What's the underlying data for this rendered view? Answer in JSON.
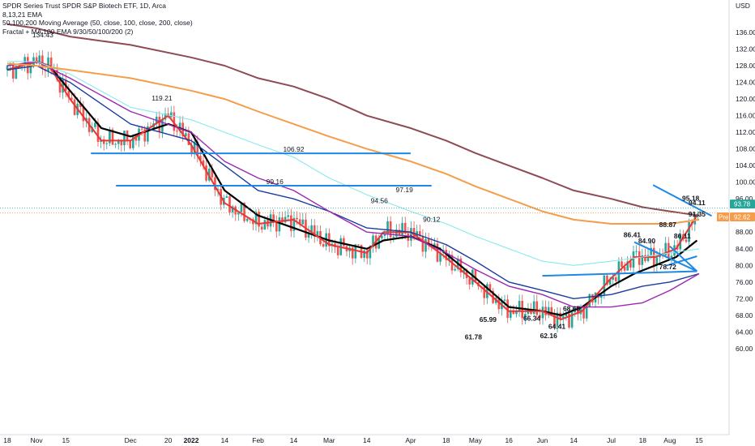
{
  "legend": {
    "title": "SPDR Series Trust SPDR S&P Biotech ETF, 1D, Arca",
    "line2": "8,13,21 EMA",
    "line3": "50,100,200 Moving Average (50, close, 100, close, 200, close)",
    "line4": "Fractal + MA 100 EMA 9/30/50/100/200 (2)"
  },
  "currency_label": "USD",
  "chart_data": {
    "type": "line",
    "title": "SPDR Series Trust SPDR S&P Biotech ETF, 1D, Arca",
    "xlabel": "",
    "ylabel": "USD",
    "ylim": [
      59,
      142
    ],
    "grid": false,
    "y_ticks": [
      "136.00",
      "132.00",
      "128.00",
      "124.00",
      "120.00",
      "116.00",
      "112.00",
      "108.00",
      "104.00",
      "100.00",
      "96.00",
      "92.00",
      "88.00",
      "84.00",
      "80.00",
      "76.00",
      "72.00",
      "68.00",
      "64.00",
      "60.00"
    ],
    "y_tick_values": [
      136,
      132,
      128,
      124,
      120,
      116,
      112,
      108,
      104,
      100,
      96,
      92,
      88,
      84,
      80,
      76,
      72,
      68,
      64,
      60
    ],
    "x_ticks": [
      "18",
      "Nov",
      "15",
      "Dec",
      "20",
      "2022",
      "14",
      "Feb",
      "14",
      "Mar",
      "14",
      "Apr",
      "18",
      "May",
      "16",
      "Jun",
      "14",
      "Jul",
      "18",
      "Aug",
      "15"
    ],
    "x_tick_days": [
      0,
      14,
      28,
      59,
      77,
      88,
      104,
      120,
      137,
      154,
      172,
      193,
      210,
      224,
      240,
      256,
      271,
      289,
      304,
      317,
      331
    ],
    "series": [
      {
        "color": "#000000",
        "x": [
          0,
          14,
          20,
          30,
          45,
          59,
          77,
          88,
          104,
          120,
          137,
          154,
          172,
          180,
          193,
          207,
          224,
          240,
          256,
          265,
          275,
          289,
          300,
          310,
          320,
          330
        ],
        "y": [
          127,
          129,
          128,
          122,
          113,
          111,
          114,
          112,
          98,
          92,
          89,
          86,
          84,
          86,
          87,
          84,
          77,
          70,
          69,
          68,
          70,
          75,
          78,
          80,
          82,
          86
        ]
      },
      {
        "color": "#e53935",
        "x": [
          0,
          14,
          20,
          30,
          45,
          59,
          77,
          88,
          104,
          120,
          137,
          154,
          172,
          180,
          193,
          207,
          224,
          240,
          256,
          265,
          275,
          289,
          300,
          310,
          320,
          330
        ],
        "y": [
          127,
          129,
          128,
          120,
          110,
          110,
          116,
          109,
          95,
          90,
          91,
          85,
          83,
          88,
          88,
          83,
          76,
          69,
          69,
          67,
          69,
          77,
          82,
          82,
          84,
          92
        ]
      },
      {
        "color": "#1a3d9e",
        "x": [
          0,
          14,
          30,
          59,
          88,
          104,
          120,
          137,
          154,
          172,
          193,
          210,
          224,
          240,
          256,
          271,
          289,
          304,
          317,
          331
        ],
        "y": [
          127,
          128,
          124,
          114,
          110,
          104,
          98,
          96,
          93,
          89,
          88,
          85,
          81,
          76,
          74,
          72,
          73,
          75,
          76,
          78
        ]
      },
      {
        "color": "#9c27b0",
        "x": [
          0,
          14,
          30,
          59,
          88,
          104,
          120,
          137,
          154,
          172,
          193,
          210,
          224,
          240,
          256,
          271,
          289,
          304,
          317,
          331
        ],
        "y": [
          128,
          129,
          125,
          117,
          112,
          105,
          101,
          98,
          93,
          88,
          87,
          83,
          79,
          75,
          73,
          70,
          70,
          71,
          74,
          78
        ]
      },
      {
        "color": "#87e9ee",
        "x": [
          0,
          14,
          30,
          59,
          88,
          104,
          120,
          137,
          154,
          172,
          193,
          210,
          224,
          240,
          256,
          271,
          289,
          304,
          317,
          331
        ],
        "y": [
          129,
          129,
          126,
          118,
          115,
          112,
          109,
          106,
          101,
          97,
          93,
          90,
          87,
          84,
          81,
          80,
          81,
          82,
          83,
          84
        ]
      },
      {
        "color": "#f59d4a",
        "x": [
          0,
          14,
          30,
          59,
          88,
          104,
          120,
          137,
          154,
          172,
          193,
          210,
          224,
          240,
          256,
          271,
          289,
          304,
          317,
          331
        ],
        "y": [
          128.5,
          128,
          127,
          125,
          122,
          120,
          117,
          114,
          111,
          108,
          105,
          102,
          99,
          96,
          93,
          91,
          90,
          90,
          90,
          91
        ]
      },
      {
        "color": "#8e4a55",
        "x": [
          0,
          14,
          30,
          59,
          88,
          104,
          120,
          137,
          154,
          172,
          193,
          210,
          224,
          240,
          256,
          271,
          289,
          304,
          317,
          331
        ],
        "y": [
          138,
          137,
          135,
          133,
          130,
          128,
          125,
          123,
          120,
          116,
          113,
          110,
          107,
          104,
          101,
          98,
          96,
          94,
          93,
          92
        ]
      }
    ],
    "annotations": [
      {
        "text": "134.43",
        "x": 17,
        "y": 134.43,
        "bold": false
      },
      {
        "text": "119.21",
        "x": 74,
        "y": 119.21,
        "bold": false
      },
      {
        "text": "106.92",
        "x": 137,
        "y": 106.92,
        "bold": false
      },
      {
        "text": "99.16",
        "x": 128,
        "y": 99.16,
        "bold": false
      },
      {
        "text": "94.56",
        "x": 178,
        "y": 94.56,
        "bold": false
      },
      {
        "text": "97.19",
        "x": 190,
        "y": 97.19,
        "bold": false
      },
      {
        "text": "90.12",
        "x": 203,
        "y": 90.12,
        "bold": false
      },
      {
        "text": "65.99",
        "x": 230,
        "y": 65.99,
        "bold": true
      },
      {
        "text": "61.78",
        "x": 223,
        "y": 61.78,
        "bold": true
      },
      {
        "text": "66.34",
        "x": 251,
        "y": 66.34,
        "bold": true
      },
      {
        "text": "68.65",
        "x": 270,
        "y": 68.65,
        "bold": true
      },
      {
        "text": "64.41",
        "x": 263,
        "y": 64.41,
        "bold": true
      },
      {
        "text": "62.16",
        "x": 259,
        "y": 62.16,
        "bold": true
      },
      {
        "text": "86.41",
        "x": 299,
        "y": 86.41,
        "bold": true
      },
      {
        "text": "84.90",
        "x": 306,
        "y": 84.9,
        "bold": true
      },
      {
        "text": "78.72",
        "x": 316,
        "y": 78.72,
        "bold": true
      },
      {
        "text": "88.87",
        "x": 316,
        "y": 88.87,
        "bold": true
      },
      {
        "text": "86.11",
        "x": 323,
        "y": 86.11,
        "bold": true
      },
      {
        "text": "95.18",
        "x": 327,
        "y": 95.18,
        "bold": true
      },
      {
        "text": "94.11",
        "x": 330,
        "y": 94.11,
        "bold": true
      },
      {
        "text": "91.35",
        "x": 330,
        "y": 91.35,
        "bold": true
      }
    ],
    "hlines": [
      {
        "x1": 40,
        "x2": 193,
        "y": 106.92,
        "color": "#1e88e5"
      },
      {
        "x1": 52,
        "x2": 203,
        "y": 99.16,
        "color": "#1e88e5"
      }
    ],
    "trendlines": [
      {
        "x1": 256,
        "y1": 77.5,
        "x2": 330,
        "y2": 78.6,
        "color": "#1e88e5"
      },
      {
        "x1": 300,
        "y1": 85.6,
        "x2": 330,
        "y2": 78.6,
        "color": "#1e88e5"
      },
      {
        "x1": 309,
        "y1": 99.3,
        "x2": 337,
        "y2": 91.9,
        "color": "#1e88e5"
      },
      {
        "x1": 317,
        "y1": 84.6,
        "x2": 330,
        "y2": 78.6,
        "color": "#1e88e5"
      },
      {
        "x1": 315,
        "y1": 79.9,
        "x2": 330,
        "y2": 82.2,
        "color": "#1e88e5"
      }
    ],
    "price_badges": [
      {
        "text": "93.78",
        "value": 93.78,
        "color": "#26a69a"
      },
      {
        "text": "92.62",
        "value": 92.62,
        "color": "#f59d4a",
        "prefix": "Pre"
      }
    ]
  }
}
